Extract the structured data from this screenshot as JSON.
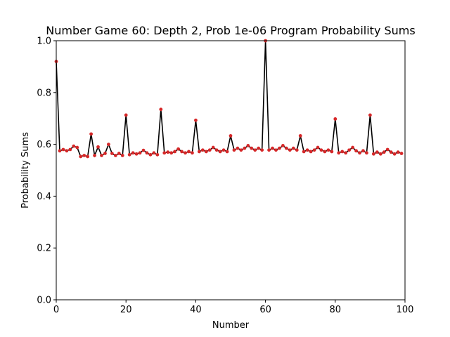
{
  "chart_data": {
    "type": "line",
    "title": "Number Game 60: Depth 2, Prob 1e-06 Program Probability Sums",
    "xlabel": "Number",
    "ylabel": "Probability Sums",
    "xlim": [
      0,
      100
    ],
    "ylim": [
      0.0,
      1.0
    ],
    "xticks": [
      "0",
      "20",
      "40",
      "60",
      "80",
      "100"
    ],
    "yticks": [
      "0.0",
      "0.2",
      "0.4",
      "0.6",
      "0.8",
      "1.0"
    ],
    "grid": false,
    "line_color": "#000000",
    "marker_color": "#d62728",
    "x": [
      0,
      1,
      2,
      3,
      4,
      5,
      6,
      7,
      8,
      9,
      10,
      11,
      12,
      13,
      14,
      15,
      16,
      17,
      18,
      19,
      20,
      21,
      22,
      23,
      24,
      25,
      26,
      27,
      28,
      29,
      30,
      31,
      32,
      33,
      34,
      35,
      36,
      37,
      38,
      39,
      40,
      41,
      42,
      43,
      44,
      45,
      46,
      47,
      48,
      49,
      50,
      51,
      52,
      53,
      54,
      55,
      56,
      57,
      58,
      59,
      60,
      61,
      62,
      63,
      64,
      65,
      66,
      67,
      68,
      69,
      70,
      71,
      72,
      73,
      74,
      75,
      76,
      77,
      78,
      79,
      80,
      81,
      82,
      83,
      84,
      85,
      86,
      87,
      88,
      89,
      90,
      91,
      92,
      93,
      94,
      95,
      96,
      97,
      98,
      99
    ],
    "y": [
      0.92,
      0.575,
      0.58,
      0.575,
      0.58,
      0.593,
      0.588,
      0.553,
      0.557,
      0.553,
      0.64,
      0.557,
      0.59,
      0.557,
      0.565,
      0.6,
      0.565,
      0.557,
      0.565,
      0.557,
      0.713,
      0.56,
      0.567,
      0.563,
      0.567,
      0.577,
      0.567,
      0.56,
      0.567,
      0.56,
      0.735,
      0.567,
      0.57,
      0.567,
      0.572,
      0.582,
      0.572,
      0.567,
      0.572,
      0.567,
      0.693,
      0.572,
      0.578,
      0.572,
      0.578,
      0.588,
      0.578,
      0.572,
      0.578,
      0.572,
      0.633,
      0.578,
      0.585,
      0.578,
      0.585,
      0.595,
      0.585,
      0.578,
      0.585,
      0.578,
      1.0,
      0.578,
      0.585,
      0.578,
      0.585,
      0.595,
      0.585,
      0.578,
      0.585,
      0.578,
      0.633,
      0.572,
      0.578,
      0.572,
      0.578,
      0.588,
      0.578,
      0.572,
      0.578,
      0.572,
      0.698,
      0.567,
      0.572,
      0.567,
      0.578,
      0.588,
      0.575,
      0.567,
      0.575,
      0.567,
      0.713,
      0.563,
      0.57,
      0.563,
      0.57,
      0.58,
      0.57,
      0.563,
      0.57,
      0.565
    ]
  }
}
